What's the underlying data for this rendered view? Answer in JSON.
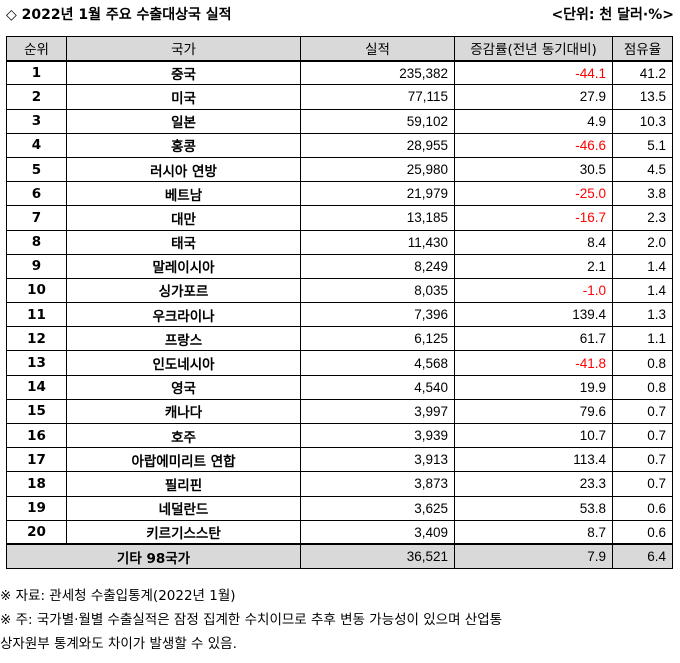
{
  "title": "◇ 2022년 1월 주요 수출대상국 실적",
  "unit": "<단위: 천 달러·%>",
  "headers": [
    "순위",
    "국가",
    "실적",
    "증감률(전년 동기대비)",
    "점유율"
  ],
  "rows": [
    {
      "rank": "1",
      "country": "중국",
      "value": "235,382",
      "change": "-44.1",
      "share": "41.2"
    },
    {
      "rank": "2",
      "country": "미국",
      "value": "77,115",
      "change": "27.9",
      "share": "13.5"
    },
    {
      "rank": "3",
      "country": "일본",
      "value": "59,102",
      "change": "4.9",
      "share": "10.3"
    },
    {
      "rank": "4",
      "country": "홍콩",
      "value": "28,955",
      "change": "-46.6",
      "share": "5.1"
    },
    {
      "rank": "5",
      "country": "러시아 연방",
      "value": "25,980",
      "change": "30.5",
      "share": "4.5"
    },
    {
      "rank": "6",
      "country": "베트남",
      "value": "21,979",
      "change": "-25.0",
      "share": "3.8"
    },
    {
      "rank": "7",
      "country": "대만",
      "value": "13,185",
      "change": "-16.7",
      "share": "2.3"
    },
    {
      "rank": "8",
      "country": "태국",
      "value": "11,430",
      "change": "8.4",
      "share": "2.0"
    },
    {
      "rank": "9",
      "country": "말레이시아",
      "value": "8,249",
      "change": "2.1",
      "share": "1.4"
    },
    {
      "rank": "10",
      "country": "싱가포르",
      "value": "8,035",
      "change": "-1.0",
      "share": "1.4"
    },
    {
      "rank": "11",
      "country": "우크라이나",
      "value": "7,396",
      "change": "139.4",
      "share": "1.3"
    },
    {
      "rank": "12",
      "country": "프랑스",
      "value": "6,125",
      "change": "61.7",
      "share": "1.1"
    },
    {
      "rank": "13",
      "country": "인도네시아",
      "value": "4,568",
      "change": "-41.8",
      "share": "0.8"
    },
    {
      "rank": "14",
      "country": "영국",
      "value": "4,540",
      "change": "19.9",
      "share": "0.8"
    },
    {
      "rank": "15",
      "country": "캐나다",
      "value": "3,997",
      "change": "79.6",
      "share": "0.7"
    },
    {
      "rank": "16",
      "country": "호주",
      "value": "3,939",
      "change": "10.7",
      "share": "0.7"
    },
    {
      "rank": "17",
      "country": "아랍에미리트 연합",
      "value": "3,913",
      "change": "113.4",
      "share": "0.7"
    },
    {
      "rank": "18",
      "country": "필리핀",
      "value": "3,873",
      "change": "23.3",
      "share": "0.7"
    },
    {
      "rank": "19",
      "country": "네덜란드",
      "value": "3,625",
      "change": "53.8",
      "share": "0.6"
    },
    {
      "rank": "20",
      "country": "키르기스스탄",
      "value": "3,409",
      "change": "8.7",
      "share": "0.6"
    }
  ],
  "total": {
    "label": "기타 98국가",
    "value": "36,521",
    "change": "7.9",
    "share": "6.4"
  },
  "notes": [
    "※ 자료: 관세청 수출입통계(2022년 1월)",
    "※ 주: 국가별·월별 수출실적은 잠정 집계한 수치이므로 추후 변동 가능성이 있으며 산업통",
    "상자원부 통계와도 차이가 발생할 수 있음."
  ],
  "colors": {
    "negative": "#ff0000",
    "header_bg": "#d9d9d9"
  }
}
